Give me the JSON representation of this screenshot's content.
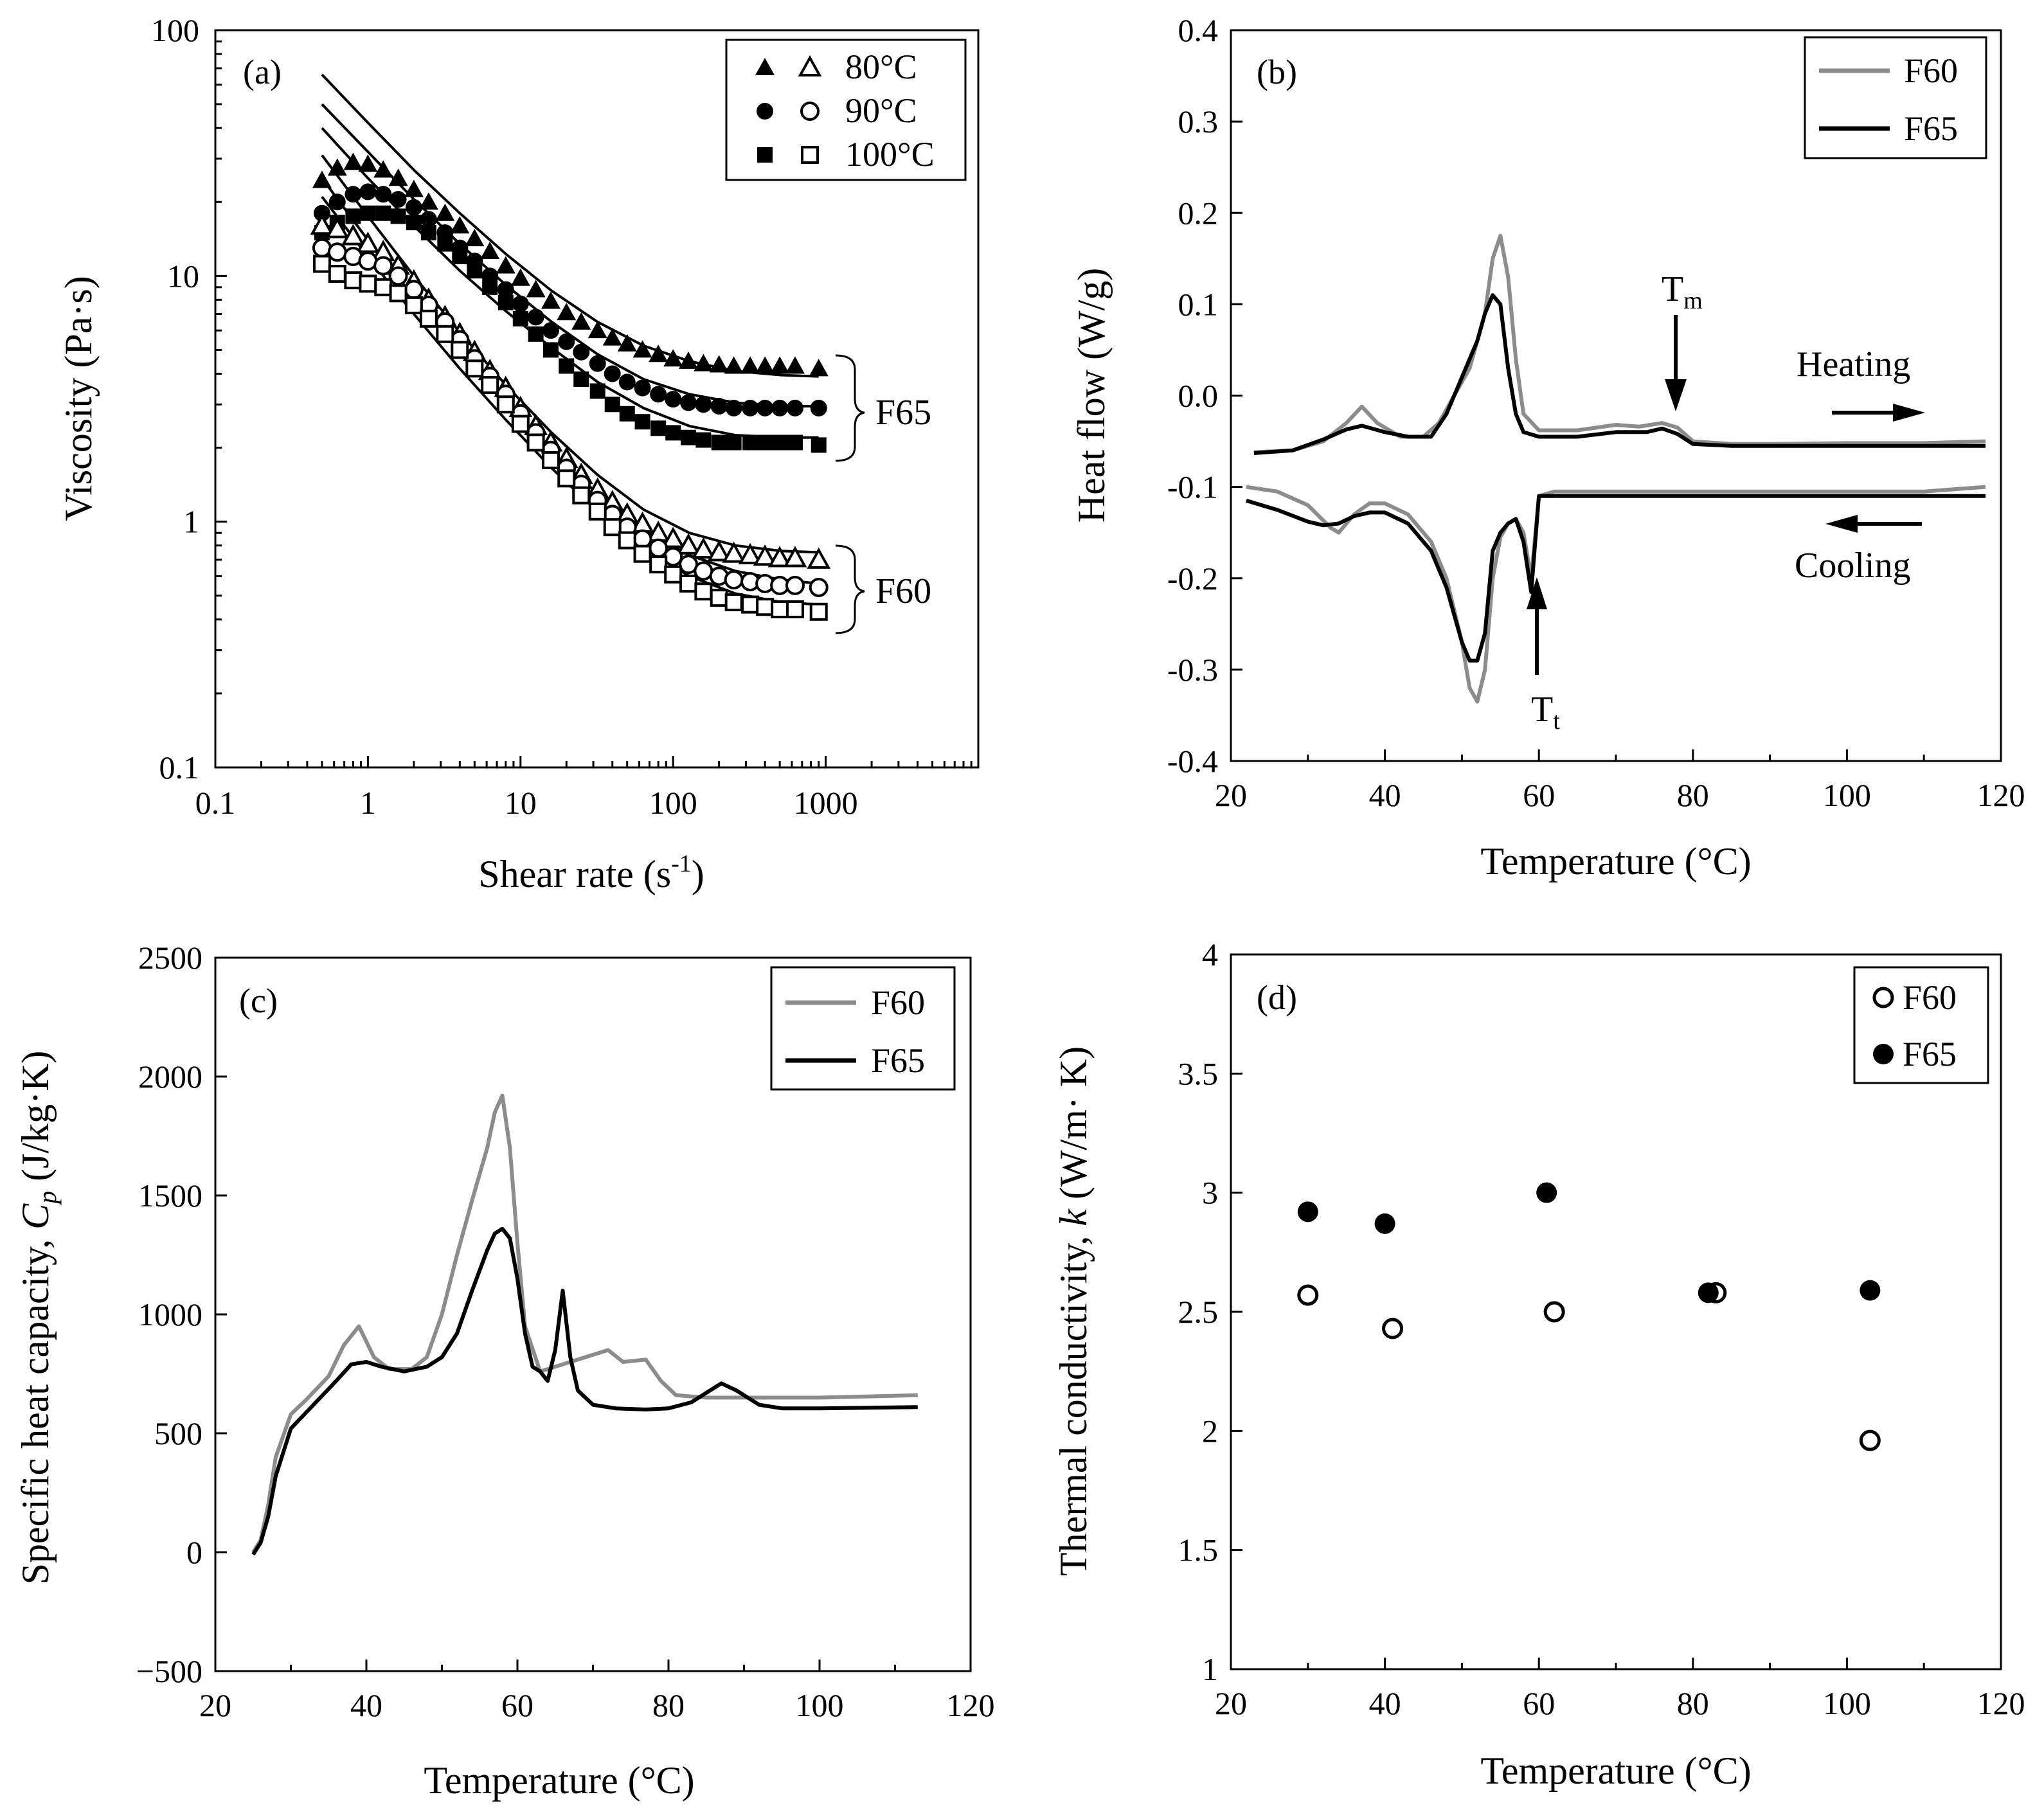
{
  "colors": {
    "f60_line": "#8c8c8c",
    "f65_line": "#000000"
  },
  "chart_data": [
    {
      "panel": "(a)",
      "type": "scatter",
      "xscale": "log",
      "yscale": "log",
      "xlim": [
        0.1,
        10000
      ],
      "ylim": [
        0.1,
        100
      ],
      "xticks": [
        "0.1",
        "1",
        "10",
        "100",
        "1000"
      ],
      "yticks": [
        "0.1",
        "1",
        "10",
        "100"
      ],
      "xlabel": "Shear rate (s",
      "xlabel_sup": "-1",
      "xlabel_end": ")",
      "ylabel": "Viscosity (Pa·s)",
      "legend": [
        {
          "label": "80°C",
          "filled": "triangle",
          "open": "triangle"
        },
        {
          "label": "90°C",
          "filled": "circle",
          "open": "circle"
        },
        {
          "label": "100°C",
          "filled": "square",
          "open": "square"
        }
      ],
      "group_labels": [
        "F65",
        "F60"
      ],
      "x": [
        0.5,
        0.63,
        0.8,
        1,
        1.26,
        1.58,
        2,
        2.5,
        3.2,
        4,
        5,
        6.3,
        8,
        10,
        12.6,
        15.8,
        20,
        25,
        32,
        40,
        50,
        63,
        80,
        100,
        126,
        158,
        200,
        250,
        320,
        400,
        500,
        630,
        900
      ],
      "series": [
        {
          "group": "F65",
          "temp": "80°C",
          "marker": "triangle",
          "filled": true,
          "values": [
            24.5,
            27.5,
            29,
            28.5,
            27,
            25,
            22.5,
            20,
            18,
            16,
            14.2,
            12.6,
            11,
            9.8,
            8.8,
            7.9,
            7.1,
            6.5,
            6.0,
            5.6,
            5.3,
            5.0,
            4.8,
            4.6,
            4.5,
            4.4,
            4.35,
            4.3,
            4.3,
            4.3,
            4.3,
            4.3,
            4.2
          ]
        },
        {
          "group": "F65",
          "temp": "90°C",
          "marker": "circle",
          "filled": true,
          "values": [
            18,
            20,
            21.5,
            22,
            21.5,
            20.5,
            19,
            17,
            15,
            13,
            11.5,
            10,
            8.8,
            7.7,
            6.8,
            6.0,
            5.4,
            4.9,
            4.4,
            4.0,
            3.7,
            3.5,
            3.3,
            3.15,
            3.05,
            3.0,
            2.95,
            2.9,
            2.9,
            2.9,
            2.9,
            2.9,
            2.9
          ]
        },
        {
          "group": "F65",
          "temp": "100°C",
          "marker": "square",
          "filled": true,
          "values": [
            15,
            16.5,
            17.5,
            18,
            18,
            17.5,
            16.5,
            15,
            13.5,
            12,
            10.5,
            9.0,
            7.8,
            6.7,
            5.8,
            5.0,
            4.3,
            3.8,
            3.4,
            3.0,
            2.75,
            2.55,
            2.4,
            2.3,
            2.2,
            2.15,
            2.1,
            2.1,
            2.1,
            2.1,
            2.1,
            2.1,
            2.05
          ]
        },
        {
          "group": "F60",
          "temp": "80°C",
          "marker": "triangle",
          "filled": false,
          "values": [
            16,
            15.5,
            14.5,
            13.5,
            12.5,
            11,
            9.5,
            8.0,
            6.8,
            5.8,
            4.9,
            4.1,
            3.5,
            2.9,
            2.45,
            2.1,
            1.8,
            1.55,
            1.35,
            1.2,
            1.07,
            0.98,
            0.9,
            0.85,
            0.8,
            0.77,
            0.75,
            0.74,
            0.73,
            0.72,
            0.71,
            0.71,
            0.7
          ]
        },
        {
          "group": "F60",
          "temp": "90°C",
          "marker": "circle",
          "filled": false,
          "values": [
            13,
            12.5,
            12,
            11.5,
            11,
            10,
            8.8,
            7.6,
            6.5,
            5.5,
            4.6,
            3.9,
            3.3,
            2.75,
            2.3,
            1.95,
            1.65,
            1.42,
            1.22,
            1.07,
            0.95,
            0.85,
            0.78,
            0.72,
            0.67,
            0.63,
            0.6,
            0.58,
            0.57,
            0.56,
            0.55,
            0.55,
            0.54
          ]
        },
        {
          "group": "F60",
          "temp": "100°C",
          "marker": "square",
          "filled": false,
          "values": [
            11.2,
            10.2,
            9.6,
            9.3,
            9.0,
            8.5,
            7.6,
            6.7,
            5.8,
            5.0,
            4.2,
            3.6,
            3.0,
            2.5,
            2.1,
            1.78,
            1.5,
            1.28,
            1.1,
            0.95,
            0.84,
            0.74,
            0.67,
            0.61,
            0.56,
            0.52,
            0.49,
            0.47,
            0.46,
            0.45,
            0.44,
            0.44,
            0.43
          ]
        }
      ],
      "fit_lines": [
        {
          "x": [
            0.5,
            1,
            2,
            4,
            8,
            16,
            32,
            64,
            128,
            256,
            512,
            900
          ],
          "values": [
            66,
            42,
            27,
            18,
            12.3,
            8.7,
            6.5,
            5.2,
            4.5,
            4.1,
            3.95,
            3.9
          ]
        },
        {
          "x": [
            0.5,
            1,
            2,
            4,
            8,
            16,
            32,
            64,
            128,
            256,
            512,
            900
          ],
          "values": [
            50,
            32,
            20.5,
            13.5,
            9.2,
            6.5,
            4.8,
            3.8,
            3.3,
            3.05,
            2.95,
            2.95
          ]
        },
        {
          "x": [
            0.5,
            1,
            2,
            4,
            8,
            16,
            32,
            64,
            128,
            256,
            512,
            900
          ],
          "values": [
            40,
            25,
            16,
            10.5,
            7.2,
            5.1,
            3.7,
            2.9,
            2.45,
            2.25,
            2.2,
            2.2
          ]
        },
        {
          "x": [
            0.5,
            1,
            2,
            4,
            8,
            16,
            32,
            64,
            128,
            256,
            512,
            900
          ],
          "values": [
            31,
            17.5,
            10,
            5.9,
            3.6,
            2.3,
            1.55,
            1.12,
            0.9,
            0.8,
            0.76,
            0.75
          ]
        },
        {
          "x": [
            0.5,
            1,
            2,
            4,
            8,
            16,
            32,
            64,
            128,
            256,
            512,
            900
          ],
          "values": [
            25,
            14,
            8.2,
            4.9,
            3.0,
            1.92,
            1.3,
            0.93,
            0.73,
            0.63,
            0.58,
            0.56
          ]
        },
        {
          "x": [
            0.5,
            1,
            2,
            4,
            8,
            16,
            32,
            64,
            128,
            256,
            512,
            900
          ],
          "values": [
            21,
            12,
            7.0,
            4.2,
            2.6,
            1.65,
            1.1,
            0.78,
            0.6,
            0.51,
            0.47,
            0.46
          ]
        }
      ]
    },
    {
      "panel": "(b)",
      "type": "line",
      "xlim": [
        20,
        120
      ],
      "ylim": [
        -0.4,
        0.4
      ],
      "xticks": [
        "20",
        "40",
        "60",
        "80",
        "100",
        "120"
      ],
      "yticks": [
        "-0.4",
        "-0.3",
        "-0.2",
        "-0.1",
        "0.0",
        "0.1",
        "0.2",
        "0.3",
        "0.4"
      ],
      "xlabel": "Temperature (°C)",
      "ylabel": "Heat flow (W/g)",
      "annotations": {
        "tm": "T",
        "tm_sub": "m",
        "tt": "T",
        "tt_sub": "t",
        "heating": "Heating",
        "cooling": "Cooling"
      },
      "series": [
        {
          "name": "F60",
          "segment": "heating",
          "x": [
            23,
            28,
            32,
            35,
            37,
            39,
            42,
            45,
            47,
            49,
            51,
            53,
            54,
            55,
            56,
            57,
            58,
            60,
            65,
            70,
            73,
            76,
            78,
            80,
            85,
            90,
            100,
            110,
            118
          ],
          "y": [
            -0.062,
            -0.06,
            -0.05,
            -0.03,
            -0.012,
            -0.03,
            -0.045,
            -0.045,
            -0.03,
            0.0,
            0.03,
            0.09,
            0.15,
            0.175,
            0.13,
            0.04,
            -0.02,
            -0.038,
            -0.038,
            -0.032,
            -0.034,
            -0.03,
            -0.035,
            -0.05,
            -0.053,
            -0.053,
            -0.052,
            -0.052,
            -0.05
          ]
        },
        {
          "name": "F65",
          "segment": "heating",
          "x": [
            23,
            28,
            32,
            35,
            37,
            40,
            43,
            46,
            48,
            50,
            52,
            53,
            54,
            55,
            56,
            57,
            58,
            60,
            65,
            70,
            74,
            76,
            78,
            80,
            85,
            90,
            100,
            110,
            118
          ],
          "y": [
            -0.063,
            -0.06,
            -0.048,
            -0.037,
            -0.033,
            -0.04,
            -0.045,
            -0.045,
            -0.02,
            0.02,
            0.06,
            0.09,
            0.11,
            0.1,
            0.03,
            -0.02,
            -0.04,
            -0.045,
            -0.045,
            -0.04,
            -0.04,
            -0.036,
            -0.042,
            -0.053,
            -0.055,
            -0.055,
            -0.055,
            -0.055,
            -0.055
          ]
        },
        {
          "name": "F60",
          "segment": "cooling",
          "x": [
            22,
            26,
            30,
            33,
            34,
            36,
            38,
            40,
            43,
            46,
            48,
            50,
            51,
            52,
            53,
            54,
            55,
            56,
            57,
            58,
            59,
            60,
            62,
            70,
            80,
            90,
            100,
            110,
            118
          ],
          "y": [
            -0.1,
            -0.105,
            -0.12,
            -0.145,
            -0.15,
            -0.13,
            -0.118,
            -0.118,
            -0.13,
            -0.16,
            -0.2,
            -0.27,
            -0.32,
            -0.335,
            -0.3,
            -0.2,
            -0.155,
            -0.14,
            -0.135,
            -0.15,
            -0.2,
            -0.11,
            -0.105,
            -0.105,
            -0.105,
            -0.105,
            -0.105,
            -0.105,
            -0.1
          ]
        },
        {
          "name": "F65",
          "segment": "cooling",
          "x": [
            22,
            26,
            30,
            32,
            34,
            36,
            38,
            40,
            43,
            46,
            48,
            50,
            51,
            52,
            53,
            54,
            55,
            56,
            57,
            58,
            59,
            60,
            62,
            70,
            80,
            90,
            100,
            110,
            118
          ],
          "y": [
            -0.115,
            -0.125,
            -0.138,
            -0.142,
            -0.14,
            -0.132,
            -0.128,
            -0.128,
            -0.14,
            -0.17,
            -0.21,
            -0.27,
            -0.29,
            -0.29,
            -0.26,
            -0.17,
            -0.15,
            -0.14,
            -0.135,
            -0.16,
            -0.215,
            -0.11,
            -0.11,
            -0.11,
            -0.11,
            -0.11,
            -0.11,
            -0.11,
            -0.11
          ]
        }
      ]
    },
    {
      "panel": "(c)",
      "type": "line",
      "xlim": [
        20,
        120
      ],
      "ylim": [
        -500,
        2500
      ],
      "xticks": [
        "20",
        "40",
        "60",
        "80",
        "100",
        "120"
      ],
      "yticks": [
        "−500",
        "0",
        "500",
        "1000",
        "1500",
        "2000",
        "2500"
      ],
      "xlabel": "Temperature (°C)",
      "ylabel": "Specific heat capacity, ",
      "ylabel_italic": "C",
      "ylabel_sub": "p",
      "ylabel_end": " (J/kg·K)",
      "series": [
        {
          "name": "F60",
          "x": [
            25,
            26,
            27,
            28,
            30,
            32,
            35,
            37,
            39,
            41,
            43,
            46,
            48,
            50,
            52,
            54,
            56,
            57,
            58,
            59,
            60,
            61,
            63,
            66,
            70,
            72,
            74,
            77,
            79,
            81,
            85,
            90,
            100,
            113
          ],
          "y": [
            0,
            50,
            200,
            400,
            580,
            640,
            740,
            870,
            950,
            820,
            770,
            770,
            820,
            1000,
            1250,
            1480,
            1700,
            1850,
            1920,
            1700,
            1300,
            950,
            760,
            790,
            830,
            850,
            800,
            810,
            720,
            660,
            650,
            650,
            650,
            660
          ]
        },
        {
          "name": "F65",
          "x": [
            25,
            26,
            27,
            28,
            30,
            33,
            36,
            38,
            40,
            42,
            45,
            48,
            50,
            52,
            54,
            56,
            57,
            58,
            59,
            60,
            61,
            62,
            63,
            64,
            65,
            66,
            67,
            68,
            70,
            73,
            77,
            80,
            83,
            85,
            87,
            89,
            92,
            95,
            100,
            113
          ],
          "y": [
            -10,
            40,
            150,
            320,
            520,
            620,
            720,
            790,
            800,
            780,
            760,
            780,
            820,
            920,
            1100,
            1270,
            1340,
            1360,
            1320,
            1150,
            920,
            780,
            760,
            720,
            850,
            1100,
            820,
            680,
            620,
            605,
            600,
            605,
            630,
            670,
            710,
            680,
            620,
            605,
            605,
            610
          ]
        }
      ]
    },
    {
      "panel": "(d)",
      "type": "scatter",
      "xlim": [
        20,
        120
      ],
      "ylim": [
        1,
        4
      ],
      "xticks": [
        "20",
        "40",
        "60",
        "80",
        "100",
        "120"
      ],
      "yticks": [
        "1",
        "1.5",
        "2",
        "2.5",
        "3",
        "3.5",
        "4"
      ],
      "xlabel": "Temperature (°C)",
      "ylabel": "Thermal conductivity, ",
      "ylabel_italic": "k",
      "ylabel_end": " (W/m· K)",
      "series": [
        {
          "name": "F60",
          "marker": "open-circle",
          "x": [
            30,
            41,
            62,
            83,
            103
          ],
          "y": [
            2.57,
            2.43,
            2.5,
            2.58,
            1.96
          ]
        },
        {
          "name": "F65",
          "marker": "filled-circle",
          "x": [
            30,
            40,
            61,
            82,
            103
          ],
          "y": [
            2.92,
            2.87,
            3.0,
            2.58,
            2.59
          ]
        }
      ]
    }
  ]
}
